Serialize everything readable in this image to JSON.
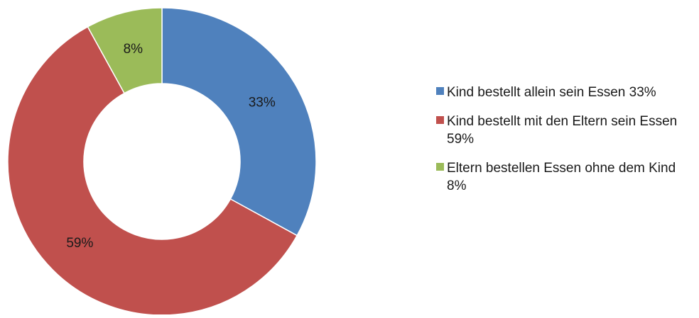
{
  "chart_data": {
    "type": "pie",
    "variant": "donut",
    "legend_position": "right",
    "slices": [
      {
        "label": "33%",
        "value": 33,
        "color": "#4F81BD"
      },
      {
        "label": "59%",
        "value": 59,
        "color": "#C0504D"
      },
      {
        "label": "8%",
        "value": 8,
        "color": "#9BBB59"
      }
    ],
    "legend": [
      {
        "text": "Kind bestellt allein sein Essen 33%",
        "color": "#4F81BD"
      },
      {
        "text": "Kind bestellt mit den Eltern sein Essen 59%",
        "color": "#C0504D"
      },
      {
        "text": "Eltern bestellen  Essen ohne dem Kind 8%",
        "color": "#9BBB59"
      }
    ]
  }
}
